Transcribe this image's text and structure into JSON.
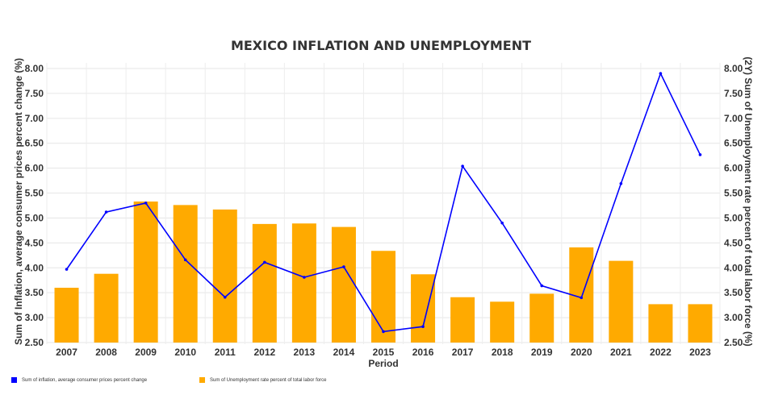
{
  "chart_data": {
    "type": "bar+line",
    "title": "MEXICO INFLATION AND UNEMPLOYMENT",
    "xlabel": "Period",
    "ylabel_left": "Sum of Inflation, average consumer prices percent change (%)",
    "ylabel_right": "(2Y) Sum of Unemployment rate percent of total labor force (%)",
    "ylim": [
      2.5,
      8.0
    ],
    "yticks": [
      "2.50",
      "3.00",
      "3.50",
      "4.00",
      "4.50",
      "5.00",
      "5.50",
      "6.00",
      "6.50",
      "7.00",
      "7.50",
      "8.00"
    ],
    "categories": [
      "2007",
      "2008",
      "2009",
      "2010",
      "2011",
      "2012",
      "2013",
      "2014",
      "2015",
      "2016",
      "2017",
      "2018",
      "2019",
      "2020",
      "2021",
      "2022",
      "2023"
    ],
    "series": [
      {
        "name": "Sum of inflation, average consumer prices percent change",
        "kind": "line",
        "axis": "left",
        "color": "#0000ff",
        "values": [
          3.97,
          5.12,
          5.3,
          4.16,
          3.41,
          4.11,
          3.81,
          4.02,
          2.72,
          2.82,
          6.04,
          4.9,
          3.64,
          3.4,
          5.69,
          7.9,
          6.27
        ]
      },
      {
        "name": "Sum of Unemployment rate percent of total labor force",
        "kind": "bar",
        "axis": "right",
        "color": "#ffaa00",
        "values": [
          3.6,
          3.88,
          5.33,
          5.26,
          5.17,
          4.88,
          4.89,
          4.82,
          4.34,
          3.87,
          3.41,
          3.32,
          3.48,
          4.41,
          4.14,
          3.27,
          3.27
        ]
      }
    ]
  }
}
